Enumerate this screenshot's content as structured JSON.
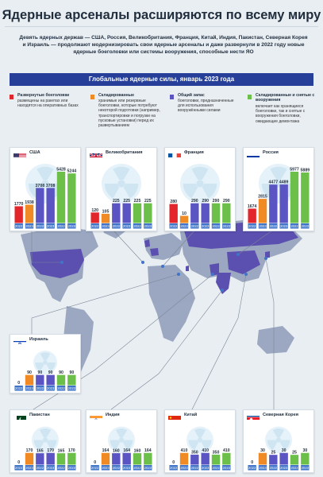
{
  "header": {
    "title": "Ядерные арсеналы расширяются по всему миру",
    "subtitle": "Девять ядерных держав — США, Россия, Великобритания, Франция, Китай, Индия, Пакистан, Северная Корея и Израиль — продолжают модернизировать свои ядерные арсеналы и даже развернули в 2022 году новые ядерные боеголовки или системы вооружения, способные нести ЯО"
  },
  "section_title": "Глобальные ядерные силы, январь 2023 года",
  "legend": [
    {
      "title": "Развернутые боеголовки",
      "desc": "размещены на ракетах или находятся на оперативных базах",
      "color": "#e2262b"
    },
    {
      "title": "Складированные",
      "desc": "хранимые или резервные боеголовки, которые потребуют некоторой подготовки (например, транспортировки и погрузки на пусковые установки) перед их развертыванием",
      "color": "#f08a24"
    },
    {
      "title": "Общий запас",
      "desc": "боеголовки, предназначенные для использования вооружёнными силами",
      "color": "#5a55c2"
    },
    {
      "title": "Складированные и снятые с вооружения",
      "desc": "включает как хранящиеся боеголовки, так и снятые с вооружения боеголовки, ожидающие демонтажа",
      "color": "#6cc04a"
    }
  ],
  "colors": {
    "deployed": "#e2262b",
    "stored": "#f08a24",
    "military": "#5a55c2",
    "total": "#6cc04a",
    "year_bar": "#3f74c9",
    "radiation": "#cfe6f2"
  },
  "chart_data": [
    {
      "type": "bar",
      "country": "США",
      "flag": "us",
      "years": [
        "2022",
        "2023",
        "2022",
        "2023",
        "2022",
        "2023"
      ],
      "values": [
        1770,
        1938,
        3708,
        3708,
        5428,
        5244
      ]
    },
    {
      "type": "bar",
      "country": "Великобритания",
      "flag": "uk",
      "years": [
        "2022",
        "2023",
        "2022",
        "2023",
        "2022",
        "2023"
      ],
      "values": [
        120,
        105,
        225,
        225,
        225,
        225
      ]
    },
    {
      "type": "bar",
      "country": "Франция",
      "flag": "fr",
      "years": [
        "2022",
        "2023",
        "2022",
        "2023",
        "2022",
        "2023"
      ],
      "values": [
        280,
        10,
        290,
        290,
        290,
        290
      ]
    },
    {
      "type": "bar",
      "country": "Россия",
      "flag": "ru",
      "years": [
        "2022",
        "2023",
        "2022",
        "2023",
        "2022",
        "2023"
      ],
      "values": [
        1674,
        2815,
        4477,
        4489,
        5977,
        5889
      ]
    },
    {
      "type": "bar",
      "country": "Израиль",
      "flag": "il",
      "years": [
        "2022",
        "2023",
        "2022",
        "2023",
        "2022",
        "2023"
      ],
      "values": [
        0,
        90,
        90,
        90,
        90,
        90
      ]
    },
    {
      "type": "bar",
      "country": "Пакистан",
      "flag": "pk",
      "years": [
        "2022",
        "2023",
        "2022",
        "2023",
        "2022",
        "2023"
      ],
      "values": [
        0,
        170,
        165,
        170,
        165,
        170
      ]
    },
    {
      "type": "bar",
      "country": "Индия",
      "flag": "in",
      "years": [
        "2022",
        "2023",
        "2022",
        "2023",
        "2022",
        "2023"
      ],
      "values": [
        0,
        164,
        160,
        164,
        160,
        164
      ]
    },
    {
      "type": "bar",
      "country": "Китай",
      "flag": "cn",
      "years": [
        "2022",
        "2023",
        "2022",
        "2023",
        "2022",
        "2023"
      ],
      "values": [
        0,
        410,
        350,
        410,
        350,
        410
      ]
    },
    {
      "type": "bar",
      "country": "Северная Корея",
      "flag": "kp",
      "years": [
        "2022",
        "2023",
        "2022",
        "2023",
        "2022",
        "2023"
      ],
      "values": [
        0,
        30,
        25,
        30,
        25,
        30
      ]
    }
  ]
}
